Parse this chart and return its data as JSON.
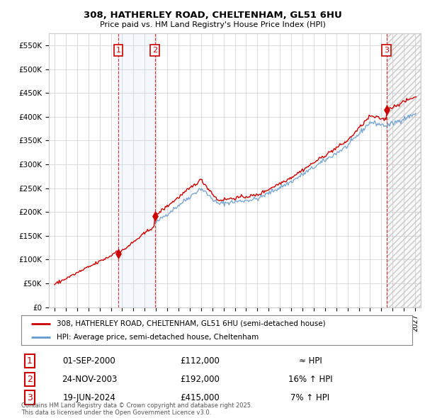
{
  "title1": "308, HATHERLEY ROAD, CHELTENHAM, GL51 6HU",
  "title2": "Price paid vs. HM Land Registry's House Price Index (HPI)",
  "legend_line1": "308, HATHERLEY ROAD, CHELTENHAM, GL51 6HU (semi-detached house)",
  "legend_line2": "HPI: Average price, semi-detached house, Cheltenham",
  "ylim": [
    0,
    575000
  ],
  "yticks": [
    0,
    50000,
    100000,
    150000,
    200000,
    250000,
    300000,
    350000,
    400000,
    450000,
    500000,
    550000
  ],
  "ytick_labels": [
    "£0",
    "£50K",
    "£100K",
    "£150K",
    "£200K",
    "£250K",
    "£300K",
    "£350K",
    "£400K",
    "£450K",
    "£500K",
    "£550K"
  ],
  "sale_year_nums": [
    2000.667,
    2003.9,
    2024.46
  ],
  "sale_prices": [
    112000,
    192000,
    415000
  ],
  "sale_labels": [
    "1",
    "2",
    "3"
  ],
  "color_sold": "#cc0000",
  "color_hpi": "#6699cc",
  "table_rows": [
    [
      "1",
      "01-SEP-2000",
      "£112,000",
      "≈ HPI"
    ],
    [
      "2",
      "24-NOV-2003",
      "£192,000",
      "16% ↑ HPI"
    ],
    [
      "3",
      "19-JUN-2024",
      "£415,000",
      "7% ↑ HPI"
    ]
  ],
  "footnote": "Contains HM Land Registry data © Crown copyright and database right 2025.\nThis data is licensed under the Open Government Licence v3.0.",
  "xmin": 1994.5,
  "xmax": 2027.5,
  "hpi_start_year": 2003.9
}
